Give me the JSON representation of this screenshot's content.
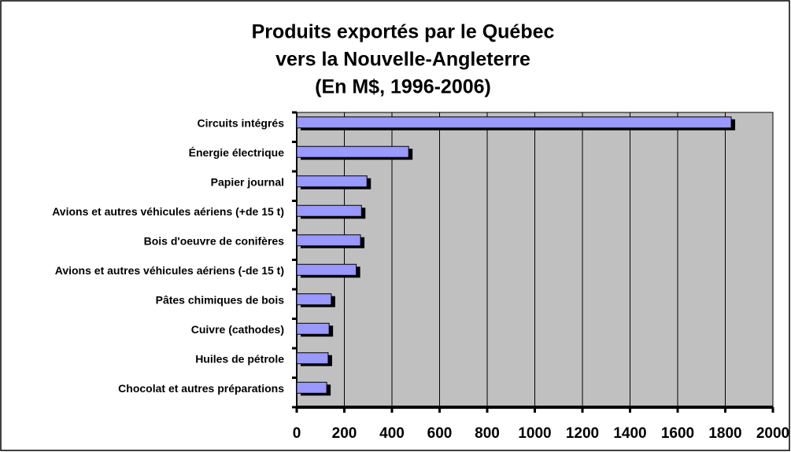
{
  "chart_data": {
    "type": "bar",
    "orientation": "horizontal",
    "title": [
      "Produits exportés par le Québec",
      "vers la Nouvelle-Angleterre",
      "(En M$, 1996-2006)"
    ],
    "categories": [
      "Circuits intégrés",
      "Énergie électrique",
      "Papier journal",
      "Avions et autres véhicules aériens (+de 15 t)",
      "Bois d'oeuvre de conifères",
      "Avions et autres véhicules aériens (-de 15 t)",
      "Pâtes chimiques de bois",
      "Cuivre (cathodes)",
      "Huiles de pétrole",
      "Chocolat et autres préparations"
    ],
    "values": [
      1825,
      470,
      295,
      272,
      268,
      250,
      145,
      136,
      132,
      126
    ],
    "color": "#9999ff",
    "xlim": [
      0,
      2000
    ],
    "xticks": [
      0,
      200,
      400,
      600,
      800,
      1000,
      1200,
      1400,
      1600,
      1800,
      2000
    ],
    "grid": true
  }
}
